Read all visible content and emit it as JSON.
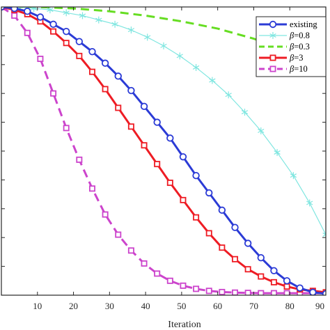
{
  "chart_data": {
    "type": "line",
    "xlabel": "Iteration",
    "ylabel": "",
    "title": "",
    "xlim": [
      0,
      90
    ],
    "ylim": [
      0,
      1
    ],
    "xticks": [
      10,
      20,
      30,
      40,
      50,
      60,
      70,
      80,
      90
    ],
    "xtick_labels": [
      "10",
      "20",
      "30",
      "40",
      "50",
      "60",
      "70",
      "80",
      "90"
    ],
    "yticks": [
      0,
      0.1,
      0.2,
      0.3,
      0.4,
      0.5,
      0.6,
      0.7,
      0.8,
      0.9,
      1.0
    ],
    "grid": false,
    "legend_position": "top-right",
    "series": [
      {
        "name": "existing",
        "color": "#2b3bd6",
        "style": "solid",
        "marker": "circle",
        "x": [
          0,
          3.6,
          7.2,
          10.8,
          14.4,
          18,
          21.6,
          25.2,
          28.8,
          32.4,
          36,
          39.6,
          43.2,
          46.8,
          50.4,
          54,
          57.6,
          61.2,
          64.8,
          68.4,
          72,
          75.6,
          79.2,
          82.8,
          86.4,
          90
        ],
        "y": [
          1.0,
          0.995,
          0.985,
          0.965,
          0.94,
          0.915,
          0.88,
          0.845,
          0.805,
          0.76,
          0.71,
          0.655,
          0.6,
          0.545,
          0.48,
          0.415,
          0.355,
          0.295,
          0.235,
          0.18,
          0.13,
          0.085,
          0.05,
          0.025,
          0.01,
          0.005
        ]
      },
      {
        "name": "β=0.8",
        "color": "#7fe6e0",
        "style": "solid",
        "marker": "asterisk",
        "x": [
          0,
          4.5,
          9,
          13.5,
          18,
          22.5,
          27,
          31.5,
          36,
          40.5,
          45,
          49.5,
          54,
          58.5,
          63,
          67.5,
          72,
          76.5,
          81,
          85.5,
          90
        ],
        "y": [
          1.0,
          1.0,
          0.995,
          0.99,
          0.98,
          0.97,
          0.955,
          0.94,
          0.92,
          0.895,
          0.865,
          0.83,
          0.79,
          0.745,
          0.695,
          0.635,
          0.57,
          0.495,
          0.415,
          0.32,
          0.21
        ]
      },
      {
        "name": "β=0.3",
        "color": "#66dd22",
        "style": "dashed",
        "marker": "none",
        "x": [
          0,
          10,
          20,
          30,
          40,
          50,
          60,
          70,
          80,
          90
        ],
        "y": [
          1.0,
          1.0,
          0.995,
          0.985,
          0.97,
          0.95,
          0.925,
          0.89,
          0.845,
          0.79
        ]
      },
      {
        "name": "β=3",
        "color": "#ee1c24",
        "style": "solid",
        "marker": "square",
        "x": [
          0,
          3.6,
          7.2,
          10.8,
          14.4,
          18,
          21.6,
          25.2,
          28.8,
          32.4,
          36,
          39.6,
          43.2,
          46.8,
          50.4,
          54,
          57.6,
          61.2,
          64.8,
          68.4,
          72,
          75.6,
          79.2,
          82.8,
          86.4,
          90
        ],
        "y": [
          1.0,
          0.99,
          0.975,
          0.95,
          0.915,
          0.875,
          0.83,
          0.775,
          0.715,
          0.65,
          0.585,
          0.52,
          0.455,
          0.39,
          0.33,
          0.27,
          0.215,
          0.165,
          0.125,
          0.09,
          0.065,
          0.045,
          0.03,
          0.02,
          0.015,
          0.01
        ]
      },
      {
        "name": "β=10",
        "color": "#cc44cc",
        "style": "dashed",
        "marker": "square",
        "x": [
          0,
          3.6,
          7.2,
          10.8,
          14.4,
          18,
          21.6,
          25.2,
          28.8,
          32.4,
          36,
          39.6,
          43.2,
          46.8,
          50.4,
          54,
          57.6,
          61.2,
          64.8,
          68.4,
          72,
          75.6,
          79.2,
          82.8,
          86.4,
          90
        ],
        "y": [
          1.0,
          0.97,
          0.91,
          0.82,
          0.7,
          0.58,
          0.47,
          0.37,
          0.28,
          0.21,
          0.155,
          0.11,
          0.075,
          0.05,
          0.033,
          0.022,
          0.015,
          0.011,
          0.009,
          0.008,
          0.007,
          0.007,
          0.007,
          0.007,
          0.007,
          0.007
        ]
      }
    ]
  }
}
